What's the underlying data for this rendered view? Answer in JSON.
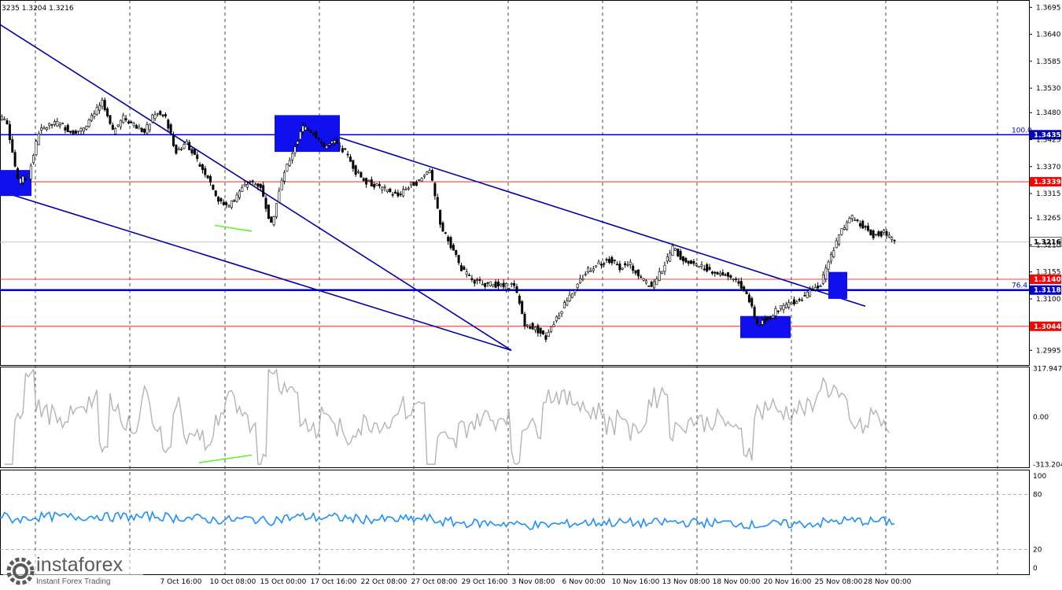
{
  "header": {
    "ohlc": "3235 1.3204 1.3216"
  },
  "logo": {
    "name": "instaforex",
    "tagline": "Instant Forex Trading"
  },
  "chart_data": {
    "type": "candlestick",
    "ylim": [
      1.2965,
      1.371
    ],
    "y_ticks": [
      "1.3695",
      "1.3640",
      "1.3585",
      "1.3530",
      "1.3480",
      "1.3425",
      "1.3370",
      "1.3315",
      "1.3265",
      "1.3210",
      "1.3155",
      "1.3100",
      "1.2995"
    ],
    "x_ticks": [
      "7 Oct 16:00",
      "10 Oct 08:00",
      "15 Oct 00:00",
      "17 Oct 16:00",
      "22 Oct 08:00",
      "27 Oct 08:00",
      "29 Oct 16:00",
      "3 Nov 08:00",
      "6 Nov 00:00",
      "10 Nov 16:00",
      "13 Nov 08:00",
      "18 Nov 00:00",
      "20 Nov 16:00",
      "25 Nov 08:00",
      "28 Nov 00:00"
    ],
    "closes": [
      1.346,
      1.334,
      1.335,
      1.344,
      1.3455,
      1.346,
      1.344,
      1.3445,
      1.347,
      1.35,
      1.344,
      1.347,
      1.3455,
      1.344,
      1.348,
      1.347,
      1.34,
      1.342,
      1.338,
      1.335,
      1.33,
      1.329,
      1.332,
      1.334,
      1.333,
      1.325,
      1.334,
      1.34,
      1.345,
      1.344,
      1.341,
      1.342,
      1.34,
      1.336,
      1.334,
      1.333,
      1.332,
      1.331,
      1.333,
      1.334,
      1.3365,
      1.325,
      1.321,
      1.316,
      1.314,
      1.313,
      1.313,
      1.3125,
      1.313,
      1.305,
      1.304,
      1.302,
      1.306,
      1.31,
      1.313,
      1.316,
      1.317,
      1.318,
      1.3165,
      1.317,
      1.314,
      1.3125,
      1.316,
      1.3205,
      1.318,
      1.317,
      1.3165,
      1.3155,
      1.315,
      1.314,
      1.311,
      1.305,
      1.306,
      1.308,
      1.309,
      1.31,
      1.3115,
      1.313,
      1.319,
      1.324,
      1.3265,
      1.325,
      1.323,
      1.3235,
      1.3216
    ],
    "last_price": 1.3216,
    "horizontal_levels": [
      {
        "label": "1.3435",
        "fib": "100.0",
        "value": 1.3435,
        "color": "#0000cc",
        "width": 1.5
      },
      {
        "label": "1.3339",
        "value": 1.3339,
        "color": "#ff0000",
        "width": 0.8
      },
      {
        "label": "1.3140",
        "value": 1.314,
        "color": "#ff0000",
        "width": 0.8
      },
      {
        "label": "1.3118",
        "fib": "76.4",
        "value": 1.3118,
        "color": "#0000cc",
        "width": 2.5
      },
      {
        "label": "1.3044",
        "value": 1.3044,
        "color": "#ff0000",
        "width": 0.8
      }
    ],
    "trend_lines": [
      {
        "from": [
          0,
          1.366
        ],
        "to": [
          650,
          1.2995
        ],
        "color": "#0000aa"
      },
      {
        "from": [
          0,
          1.332
        ],
        "to": [
          650,
          1.2995
        ],
        "color": "#0000aa"
      },
      {
        "from": [
          430,
          1.343
        ],
        "to": [
          1100,
          1.3085
        ],
        "color": "#0000aa"
      }
    ],
    "highlight_boxes": [
      {
        "x": [
          0,
          40
        ],
        "y": [
          1.331,
          1.3363
        ]
      },
      {
        "x": [
          349,
          432
        ],
        "y": [
          1.34,
          1.3475
        ]
      },
      {
        "x": [
          941,
          1005
        ],
        "y": [
          1.302,
          1.3065
        ]
      },
      {
        "x": [
          1053,
          1077
        ],
        "y": [
          1.31,
          1.3155
        ]
      }
    ],
    "indicator_1": {
      "type": "oscillator",
      "ticks": [
        "317.9471",
        "0.00",
        "-313.204"
      ],
      "ylim": [
        -330,
        330
      ]
    },
    "indicator_2": {
      "type": "line",
      "ticks": [
        "100",
        "80",
        "20",
        "0"
      ],
      "ylim": [
        0,
        100
      ],
      "levels": [
        80,
        20
      ]
    },
    "colors": {
      "price": "#000000",
      "cci": "#b4b4b4",
      "rsi": "#1e90ff",
      "divergence": "#66ee33"
    }
  }
}
